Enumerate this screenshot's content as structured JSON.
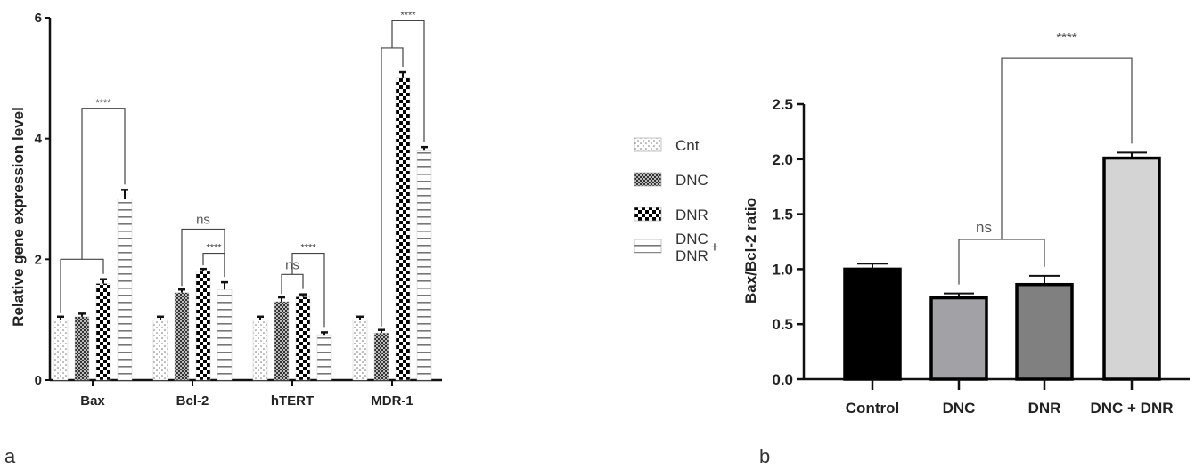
{
  "chart_data": [
    {
      "type": "bar",
      "panel_label": "a",
      "title": "",
      "xlabel": "",
      "ylabel": "Relative gene expression level",
      "ylim": [
        0,
        6
      ],
      "yticks": [
        "0",
        "2",
        "4",
        "6"
      ],
      "categories": [
        "Bax",
        "Bcl-2",
        "hTERT",
        "MDR-1"
      ],
      "legend_position": "right",
      "legend_plus": "+",
      "series": [
        {
          "name": "Cnt",
          "pattern": "dots",
          "values": [
            1.0,
            1.0,
            1.0,
            1.0
          ],
          "errors": [
            0.05,
            0.05,
            0.05,
            0.05
          ]
        },
        {
          "name": "DNC",
          "pattern": "fine-check",
          "values": [
            1.05,
            1.45,
            1.3,
            0.78
          ],
          "errors": [
            0.05,
            0.05,
            0.07,
            0.05
          ]
        },
        {
          "name": "DNR",
          "pattern": "checker",
          "values": [
            1.6,
            1.8,
            1.38,
            5.0
          ],
          "errors": [
            0.07,
            0.04,
            0.04,
            0.1
          ]
        },
        {
          "name": "DNC DNR",
          "legend_lines": [
            "DNC",
            "DNR"
          ],
          "pattern": "hlines",
          "values": [
            3.0,
            1.5,
            0.75,
            3.8
          ],
          "errors": [
            0.15,
            0.12,
            0.04,
            0.06
          ]
        }
      ],
      "annotations": [
        {
          "group": 0,
          "from": [
            0,
            1
          ],
          "to": 2,
          "y": 2.0,
          "label": ""
        },
        {
          "group": 0,
          "from_bracket": 0,
          "to": 3,
          "y": 4.5,
          "label": "****"
        },
        {
          "group": 1,
          "from": [
            1,
            1
          ],
          "to": 3,
          "y": 2.5,
          "label": "ns"
        },
        {
          "group": 1,
          "from": [
            2,
            2
          ],
          "to": 3,
          "y": 2.1,
          "label": "****"
        },
        {
          "group": 2,
          "from": [
            1,
            1
          ],
          "to": 2,
          "y": 1.75,
          "label": "ns"
        },
        {
          "group": 2,
          "from_bracket": 4,
          "to": 3,
          "y": 2.1,
          "label": "****"
        },
        {
          "group": 3,
          "from": [
            1,
            1
          ],
          "to": 2,
          "y": 5.5,
          "label": ""
        },
        {
          "group": 3,
          "from_bracket": 6,
          "to": 3,
          "y": 5.95,
          "label": "****"
        }
      ]
    },
    {
      "type": "bar",
      "panel_label": "b",
      "title": "",
      "xlabel": "",
      "ylabel": "Bax/Bcl-2 ratio",
      "ylim": [
        0,
        2.5
      ],
      "yticks": [
        "0.0",
        "0.5",
        "1.0",
        "1.5",
        "2.0",
        "2.5"
      ],
      "categories": [
        "Control",
        "DNC",
        "DNR",
        "DNC + DNR"
      ],
      "values": [
        1.0,
        0.74,
        0.86,
        2.01
      ],
      "errors": [
        0.05,
        0.04,
        0.08,
        0.05
      ],
      "colors": [
        "#000000",
        "#a2a2a6",
        "#808080",
        "#d4d4d4"
      ],
      "annotations": [
        {
          "from": 1,
          "to": 2,
          "y": 1.27,
          "label": "ns"
        },
        {
          "from_bracket": 0,
          "to": 3,
          "y": 2.92,
          "label": "****"
        }
      ]
    }
  ]
}
